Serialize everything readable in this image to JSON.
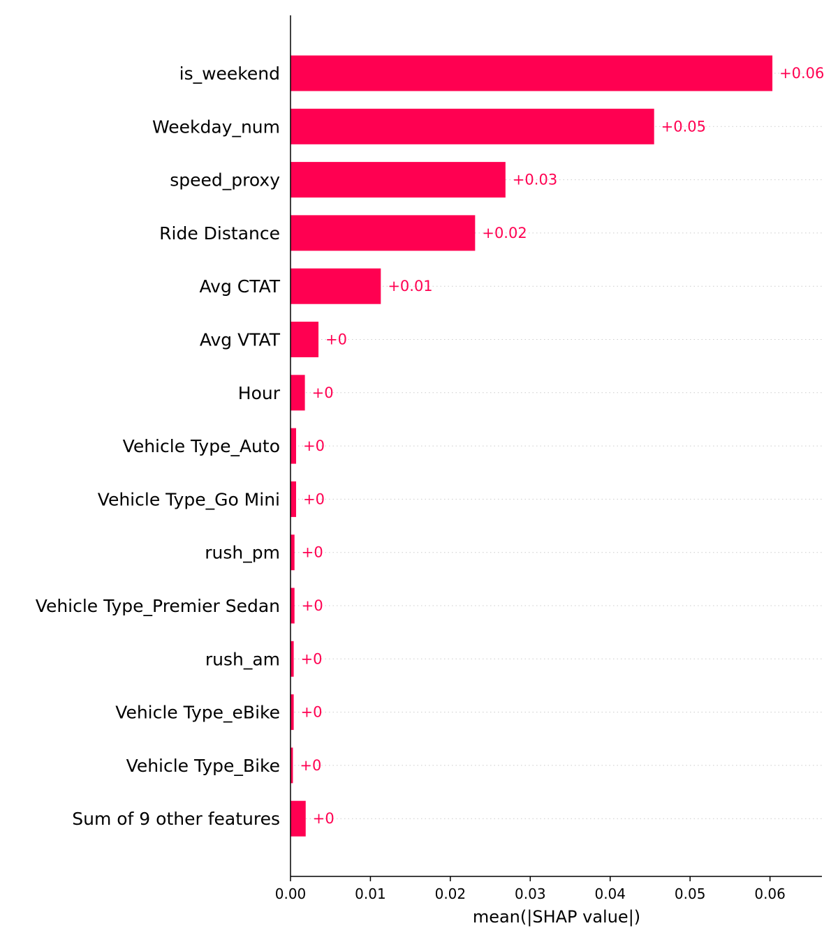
{
  "chart_data": {
    "type": "bar",
    "orientation": "horizontal",
    "categories": [
      "is_weekend",
      "Weekday_num",
      "speed_proxy",
      "Ride Distance",
      "Avg CTAT",
      "Avg VTAT",
      "Hour",
      "Vehicle Type_Auto",
      "Vehicle Type_Go Mini",
      "rush_pm",
      "Vehicle Type_Premier Sedan",
      "rush_am",
      "Vehicle Type_eBike",
      "Vehicle Type_Bike",
      "Sum of 9 other features"
    ],
    "values": [
      0.0603,
      0.0455,
      0.0269,
      0.0231,
      0.0113,
      0.0035,
      0.0018,
      0.0007,
      0.0007,
      0.0005,
      0.0005,
      0.0004,
      0.0004,
      0.0003,
      0.0019
    ],
    "value_labels": [
      "+0.06",
      "+0.05",
      "+0.03",
      "+0.02",
      "+0.01",
      "+0",
      "+0",
      "+0",
      "+0",
      "+0",
      "+0",
      "+0",
      "+0",
      "+0",
      "+0"
    ],
    "xlabel": "mean(|SHAP value|)",
    "ylabel": "",
    "title": "",
    "xlim": [
      0,
      0.0665
    ],
    "xticks": [
      "0.00",
      "0.01",
      "0.02",
      "0.03",
      "0.04",
      "0.05",
      "0.06"
    ],
    "grid": "dotted row guides",
    "bar_color": "#ff0051",
    "label_color": "#ff0051",
    "guide_color": "#cccccc",
    "axis_color": "#000000"
  }
}
